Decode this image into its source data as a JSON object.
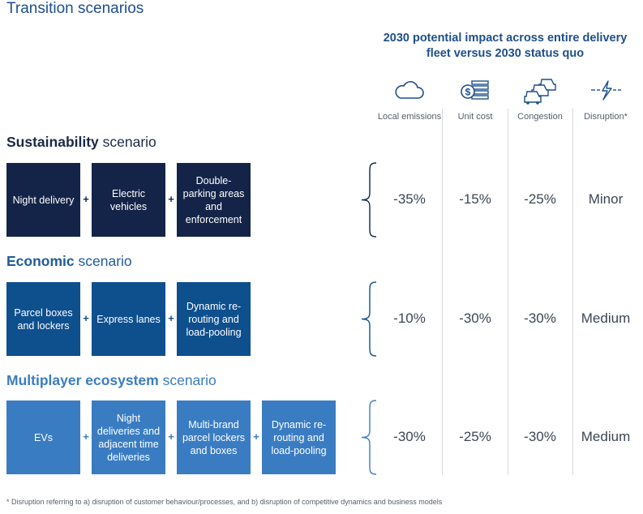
{
  "title": "Transition scenarios",
  "impact_header": "2030 potential impact across entire delivery fleet versus 2030 status quo",
  "columns": [
    {
      "label": "Local emissions",
      "icon": "cloud-icon"
    },
    {
      "label": "Unit cost",
      "icon": "money-stack-icon"
    },
    {
      "label": "Congestion",
      "icon": "cars-icon"
    },
    {
      "label": "Disruption*",
      "icon": "lightning-icon"
    }
  ],
  "scenarios": [
    {
      "title_bold": "Sustainability",
      "title_rest": " scenario",
      "color": "#142448",
      "title_color": "#142448",
      "boxes": [
        "Night delivery",
        "Electric vehicles",
        "Double-parking areas and enforcement"
      ],
      "values": [
        "-35%",
        "-15%",
        "-25%",
        "Minor"
      ]
    },
    {
      "title_bold": "Economic",
      "title_rest": " scenario",
      "color": "#0e4f8e",
      "title_color": "#1f5b99",
      "boxes": [
        "Parcel boxes and lockers",
        "Express lanes",
        "Dynamic re-routing and load-pooling"
      ],
      "values": [
        "-10%",
        "-30%",
        "-30%",
        "Medium"
      ]
    },
    {
      "title_bold": "Multiplayer ecosystem",
      "title_rest": " scenario",
      "color": "#3a7cc2",
      "title_color": "#3a7cc2",
      "boxes": [
        "EVs",
        "Night deliveries and adjacent time deliveries",
        "Multi-brand parcel lockers and boxes",
        "Dynamic re-routing and load-pooling"
      ],
      "values": [
        "-30%",
        "-25%",
        "-30%",
        "Medium"
      ]
    }
  ],
  "plus_sign": "+",
  "footnote": "* Disruption referring to a) disruption of customer behaviour/processes, and b) disruption of competitive dynamics and business models"
}
